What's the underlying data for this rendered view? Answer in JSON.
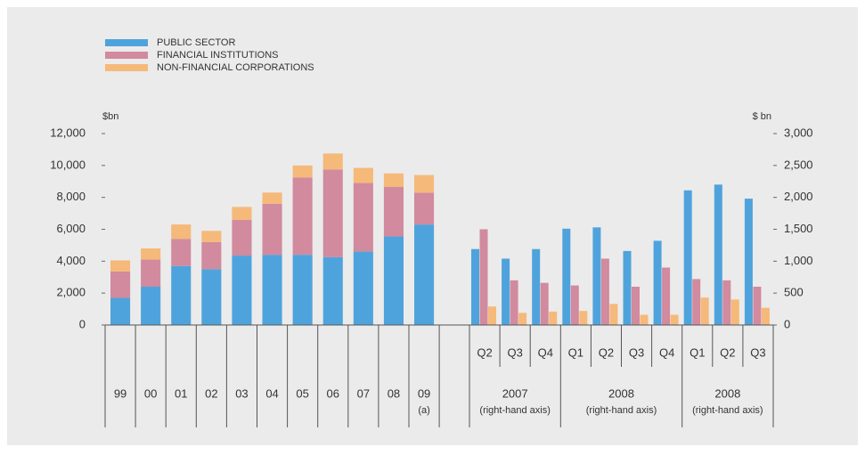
{
  "chart_data": [
    {
      "type": "stacked-bar",
      "categories": [
        "99",
        "00",
        "01",
        "02",
        "03",
        "04",
        "05",
        "06",
        "07",
        "08",
        "09"
      ],
      "annotations": [
        {
          "category": "09",
          "text": "(a)"
        }
      ],
      "y_label": "$bn",
      "ylim": [
        0,
        12000
      ],
      "yticks": [
        0,
        {
          "value": 2000,
          "label": "2,000"
        },
        {
          "value": 4000,
          "label": "4,000"
        },
        {
          "value": 6000,
          "label": "6,000"
        },
        {
          "value": 8000,
          "label": "8,000"
        },
        {
          "value": 10000,
          "label": "10,000"
        },
        {
          "value": 12000,
          "label": "12,000"
        }
      ],
      "legend": "top-left",
      "series": [
        {
          "name": "PUBLIC SECTOR",
          "color": "#4fa3dc",
          "values": [
            1700,
            2400,
            3700,
            3500,
            4350,
            4400,
            4400,
            4250,
            4600,
            5550,
            6300
          ]
        },
        {
          "name": "FINANCIAL INSTITUTIONS",
          "color": "#d18a9e",
          "values": [
            1650,
            1700,
            1700,
            1700,
            2250,
            3200,
            4850,
            5500,
            4300,
            3100,
            2000
          ]
        },
        {
          "name": "NON-FINANCIAL CORPORATIONS",
          "color": "#f5b97a",
          "values": [
            700,
            700,
            900,
            700,
            800,
            700,
            750,
            1000,
            950,
            850,
            1100
          ]
        }
      ]
    },
    {
      "type": "grouped-bar",
      "groups": [
        {
          "label": "2007",
          "sublabel": "(right-hand axis)",
          "categories": [
            "Q2",
            "Q3",
            "Q4"
          ]
        },
        {
          "label": "2008",
          "sublabel": "(right-hand axis)",
          "categories": [
            "Q1",
            "Q2",
            "Q3",
            "Q4"
          ]
        },
        {
          "label": "2008",
          "sublabel": "(right-hand axis)",
          "categories": [
            "Q1",
            "Q2",
            "Q3"
          ]
        }
      ],
      "y2_label": "$ bn",
      "y2lim": [
        0,
        3000
      ],
      "y2ticks": [
        0,
        500,
        {
          "value": 1000,
          "label": "1,000"
        },
        {
          "value": 1500,
          "label": "1,500"
        },
        {
          "value": 2000,
          "label": "2,000"
        },
        {
          "value": 2500,
          "label": "2,500"
        },
        {
          "value": 3000,
          "label": "3,000"
        }
      ],
      "series": [
        {
          "name": "PUBLIC SECTOR",
          "color": "#4fa3dc",
          "axis": "y2",
          "values": [
            1190,
            1040,
            1190,
            1510,
            1530,
            1160,
            1320,
            2110,
            2200,
            1980
          ]
        },
        {
          "name": "FINANCIAL INSTITUTIONS",
          "color": "#d18a9e",
          "axis": "y2",
          "values": [
            1500,
            700,
            660,
            620,
            1040,
            600,
            900,
            720,
            700,
            600
          ]
        },
        {
          "name": "NON-FINANCIAL CORPORATIONS",
          "color": "#f5b97a",
          "axis": "y2",
          "values": [
            290,
            190,
            210,
            220,
            330,
            160,
            160,
            430,
            400,
            270
          ]
        }
      ]
    }
  ]
}
